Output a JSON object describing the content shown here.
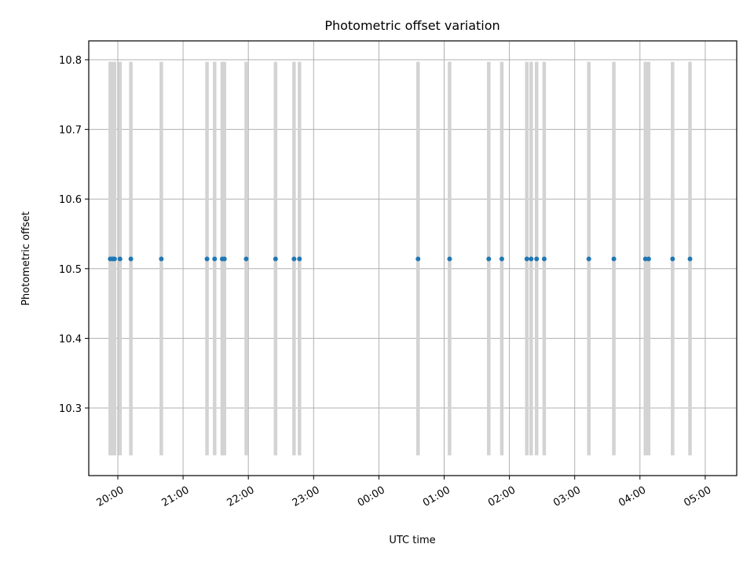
{
  "chart_data": {
    "type": "scatter",
    "title": "Photometric offset variation",
    "xlabel": "UTC time",
    "ylabel": "Photometric offset",
    "x_ticks": [
      "20:00",
      "21:00",
      "22:00",
      "23:00",
      "00:00",
      "01:00",
      "02:00",
      "03:00",
      "04:00",
      "05:00"
    ],
    "y_ticks": [
      "10.3",
      "10.4",
      "10.5",
      "10.6",
      "10.7",
      "10.8"
    ],
    "grid": true,
    "colors": {
      "point": "#1f77b4",
      "errorbar": "#d3d3d3"
    },
    "error_band": [
      10.232,
      10.797
    ],
    "series": [
      {
        "x": [
          "19:53",
          "19:55",
          "19:57",
          "20:02",
          "20:12",
          "20:40",
          "21:22",
          "21:29",
          "21:36",
          "21:38",
          "21:58",
          "22:25",
          "22:42",
          "22:47",
          "00:36",
          "01:05",
          "01:41",
          "01:53",
          "02:16",
          "02:20",
          "02:25",
          "02:32",
          "03:13",
          "03:36",
          "04:05",
          "04:08",
          "04:30",
          "04:46"
        ],
        "y": [
          10.514,
          10.514,
          10.514,
          10.514,
          10.514,
          10.514,
          10.514,
          10.514,
          10.514,
          10.514,
          10.514,
          10.514,
          10.514,
          10.514,
          10.514,
          10.514,
          10.514,
          10.514,
          10.514,
          10.514,
          10.514,
          10.514,
          10.514,
          10.514,
          10.514,
          10.514,
          10.514,
          10.514
        ]
      }
    ]
  }
}
